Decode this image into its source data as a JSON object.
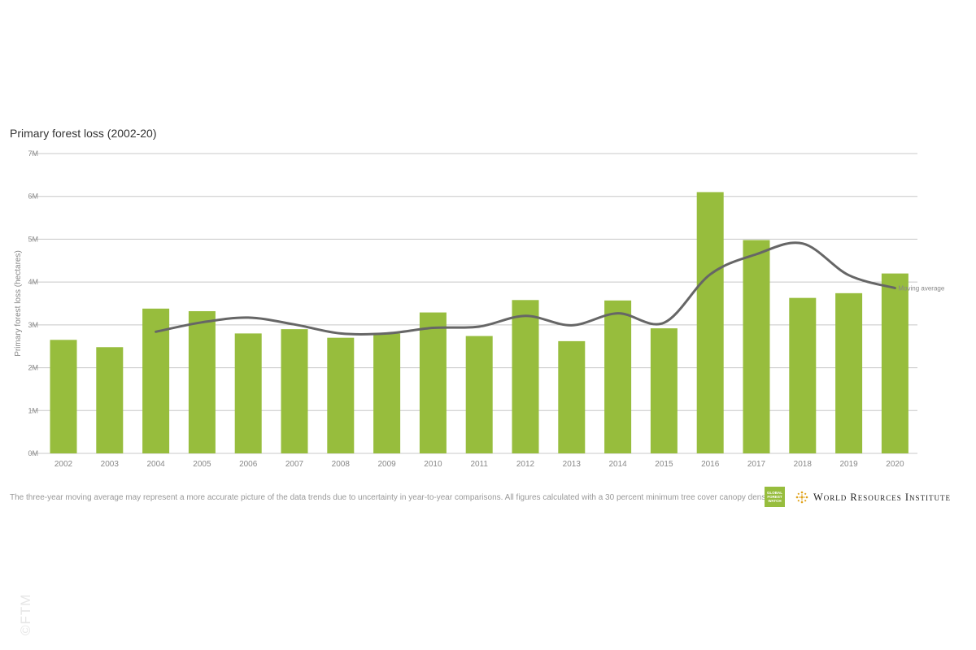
{
  "colors": {
    "bar": "#97bd3d",
    "line": "#666666",
    "line_dark": "#333333",
    "grid": "#c8c8c8",
    "axis_text": "#888888"
  },
  "chart_data": {
    "type": "bar",
    "title": "Primary forest loss (2002-20)",
    "ylabel": "Primary forest loss (hectares)",
    "xlabel": "",
    "ylim": [
      0,
      7000000
    ],
    "yticks": [
      0,
      1000000,
      2000000,
      3000000,
      4000000,
      5000000,
      6000000,
      7000000
    ],
    "ytick_labels": [
      "0M",
      "1M",
      "2M",
      "3M",
      "4M",
      "5M",
      "6M",
      "7M"
    ],
    "grid": true,
    "categories": [
      "2002",
      "2003",
      "2004",
      "2005",
      "2006",
      "2007",
      "2008",
      "2009",
      "2010",
      "2011",
      "2012",
      "2013",
      "2014",
      "2015",
      "2016",
      "2017",
      "2018",
      "2019",
      "2020"
    ],
    "series": [
      {
        "type": "bar",
        "values": [
          2650000,
          2480000,
          3380000,
          3320000,
          2800000,
          2900000,
          2700000,
          2800000,
          3290000,
          2740000,
          3580000,
          2620000,
          3570000,
          2920000,
          6100000,
          4980000,
          3630000,
          3740000,
          4200000
        ]
      },
      {
        "name": "Moving average",
        "type": "line",
        "x": [
          "2004",
          "2005",
          "2006",
          "2007",
          "2008",
          "2009",
          "2010",
          "2011",
          "2012",
          "2013",
          "2014",
          "2015",
          "2016",
          "2017",
          "2018",
          "2019",
          "2020"
        ],
        "values": [
          2840000,
          3060000,
          3170000,
          3010000,
          2800000,
          2800000,
          2930000,
          2960000,
          3210000,
          2990000,
          3270000,
          3050000,
          4180000,
          4650000,
          4900000,
          4160000,
          3860000
        ]
      }
    ]
  },
  "footnote": "The three-year moving average may represent a more accurate picture of the data trends due to uncertainty in year-to-year comparisons. All figures calculated with a 30 percent minimum tree cover canopy density",
  "logos": {
    "gfw_lines": [
      "GLOBAL",
      "FOREST",
      "WATCH"
    ],
    "wri": "World Resources Institute"
  },
  "watermark": "©FTM"
}
